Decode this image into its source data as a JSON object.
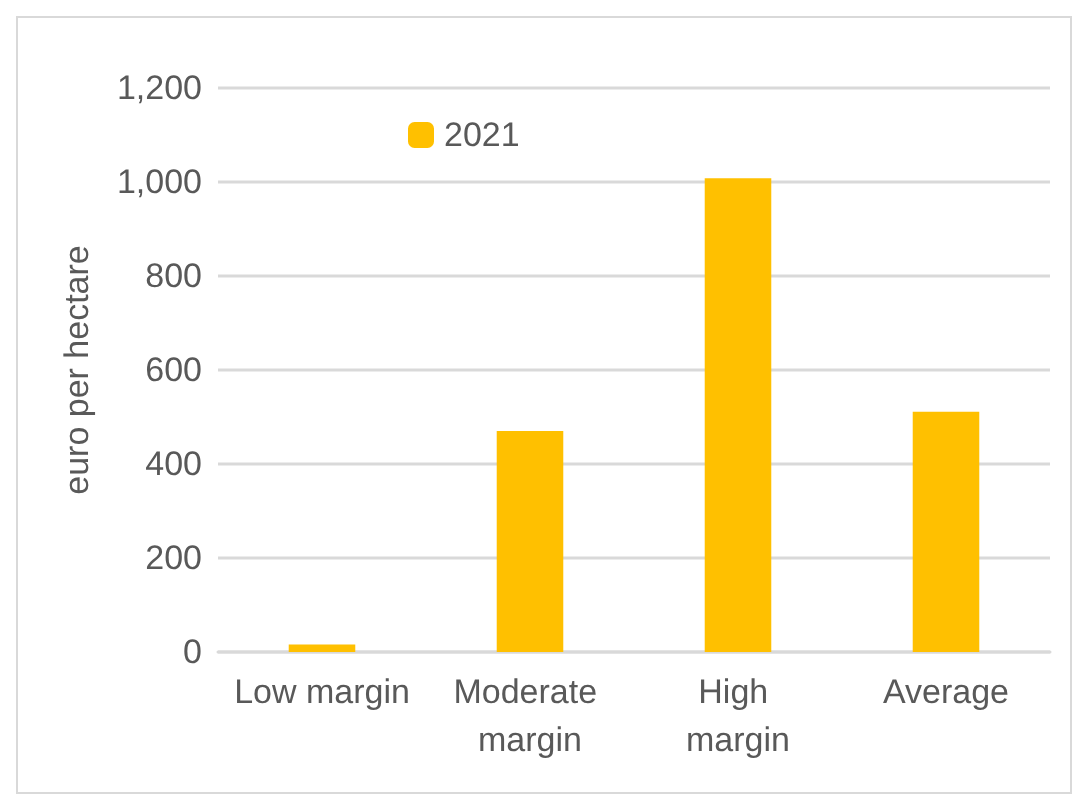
{
  "chart_data": {
    "type": "bar",
    "ylabel": "euro per hectare",
    "categories": [
      "Low margin",
      "Moderate margin",
      "High margin",
      "Average"
    ],
    "series": [
      {
        "name": "2021",
        "color": "#ffc000",
        "values": [
          16,
          470,
          1008,
          511
        ]
      }
    ],
    "ylim": [
      0,
      1200
    ],
    "yticks": [
      {
        "value": 0,
        "label": "0"
      },
      {
        "value": 200,
        "label": "200"
      },
      {
        "value": 400,
        "label": "400"
      },
      {
        "value": 600,
        "label": "600"
      },
      {
        "value": 800,
        "label": "800"
      },
      {
        "value": 1000,
        "label": "1,000"
      },
      {
        "value": 1200,
        "label": "1,200"
      }
    ],
    "grid": "y",
    "legend": "top left"
  }
}
